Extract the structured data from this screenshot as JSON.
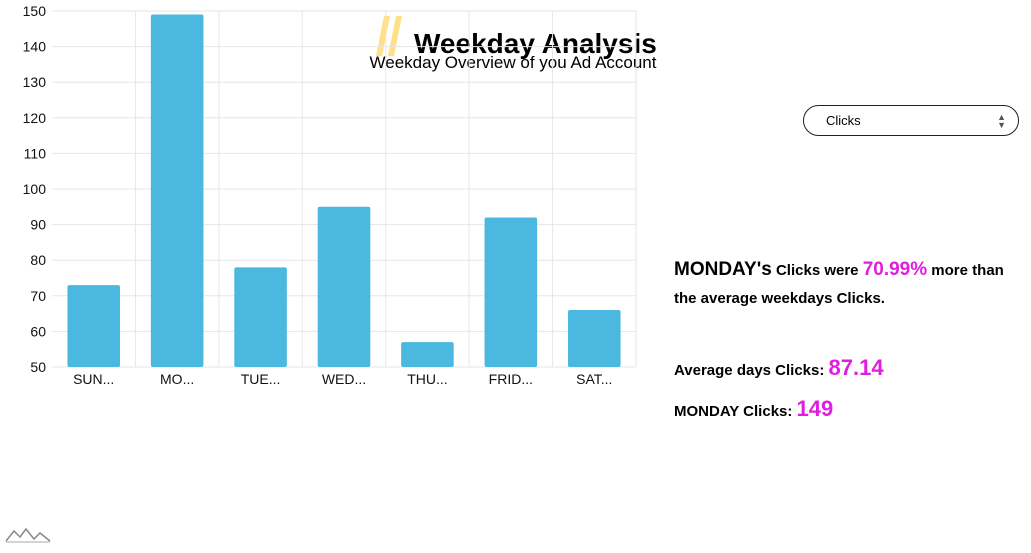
{
  "header": {
    "title": "Weekday Analysis",
    "subtitle": "Weekday Overview of you Ad Account"
  },
  "metric_select": {
    "selected": "Clicks",
    "icon": "select-arrows-icon"
  },
  "insight": {
    "day": "MONDAY's",
    "metric_phrase": " Clicks were ",
    "percent": "70.99%",
    "tail": " more than the average weekdays Clicks."
  },
  "stats": {
    "average_label": "Average days Clicks: ",
    "average_value": "87.14",
    "day_label": "MONDAY Clicks: ",
    "day_value": "149"
  },
  "colors": {
    "bar": "#4bb8e0",
    "accent": "#e01ee0",
    "slash": "#ffe08a"
  },
  "chart_data": {
    "type": "bar",
    "categories": [
      "SUN...",
      "MO...",
      "TUE...",
      "WED...",
      "THU...",
      "FRID...",
      "SAT..."
    ],
    "values": [
      73,
      149,
      78,
      95,
      57,
      92,
      66
    ],
    "yticks": [
      "150",
      "140",
      "130",
      "120",
      "110",
      "100",
      "90",
      "80",
      "70",
      "60",
      "50"
    ],
    "ylim": [
      50,
      150
    ],
    "grid": true,
    "title": "",
    "xlabel": "",
    "ylabel": ""
  }
}
